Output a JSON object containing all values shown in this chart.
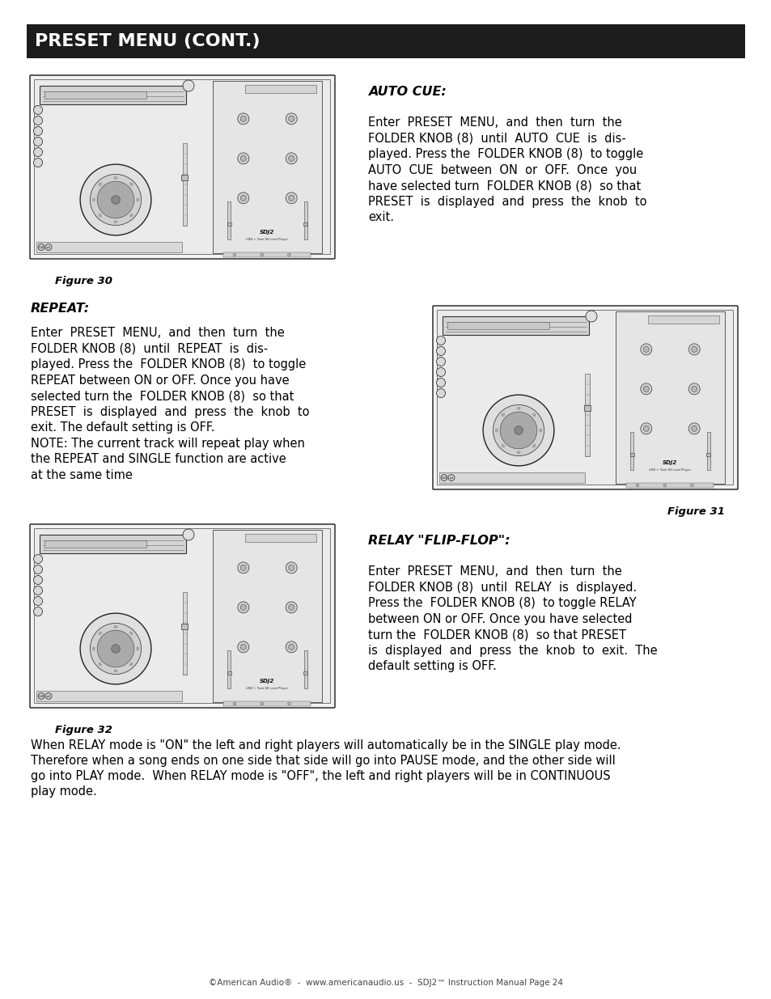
{
  "page_bg": "#ffffff",
  "header_bg": "#1c1c1c",
  "header_text": "PRESET MENU (CONT.)",
  "header_text_color": "#ffffff",
  "footer_text": "©American Audio®  -  www.americanaudio.us  -  SDJ2™ Instruction Manual Page 24",
  "section1_title": "AUTO CUE:",
  "section1_fig": "Figure 30",
  "section1_body": [
    "Enter  PRESET  MENU,  and  then  turn  the",
    "FOLDER KNOB (8)  until  AUTO  CUE  is  dis-",
    "played. Press the  FOLDER KNOB (8)  to toggle",
    "AUTO  CUE  between  ON  or  OFF.  Once  you",
    "have selected turn  FOLDER KNOB (8)  so that",
    "PRESET  is  displayed  and  press  the  knob  to",
    "exit."
  ],
  "section1_italic_words": [
    "FOLDER KNOB (8)"
  ],
  "section2_title": "REPEAT:",
  "section2_fig": "Figure 31",
  "section2_body": [
    "Enter  PRESET  MENU,  and  then  turn  the",
    "FOLDER KNOB (8)  until  REPEAT  is  dis-",
    "played. Press the  FOLDER KNOB (8)  to toggle",
    "REPEAT between ON or OFF. Once you have",
    "selected turn the  FOLDER KNOB (8)  so that",
    "PRESET  is  displayed  and  press  the  knob  to",
    "exit. The default setting is OFF.",
    "NOTE: The current track will repeat play when",
    "the REPEAT and SINGLE function are active",
    "at the same time"
  ],
  "section3_title": "RELAY \"FLIP-FLOP\":",
  "section3_fig": "Figure 32",
  "section3_body": [
    "Enter  PRESET  MENU,  and  then  turn  the",
    "FOLDER KNOB (8)  until  RELAY  is  displayed.",
    "Press the  FOLDER KNOB (8)  to toggle RELAY",
    "between ON or OFF. Once you have selected",
    "turn the  FOLDER KNOB (8)  so that PRESET",
    "is  displayed  and  press  the  knob  to  exit.  The",
    "default setting is OFF."
  ],
  "bottom_lines": [
    "When RELAY mode is \"ON\" the left and right players will automatically be in the SINGLE play mode.",
    "Therefore when a song ends on one side that side will go into PAUSE mode, and the other side will",
    "go into PLAY mode.  When RELAY mode is \"OFF\", the left and right players will be in CONTINUOUS",
    "play mode."
  ],
  "img_border": "#2a2a2a",
  "img_bg": "#f0f0f0",
  "img_inner_bg": "#e8e8e8"
}
